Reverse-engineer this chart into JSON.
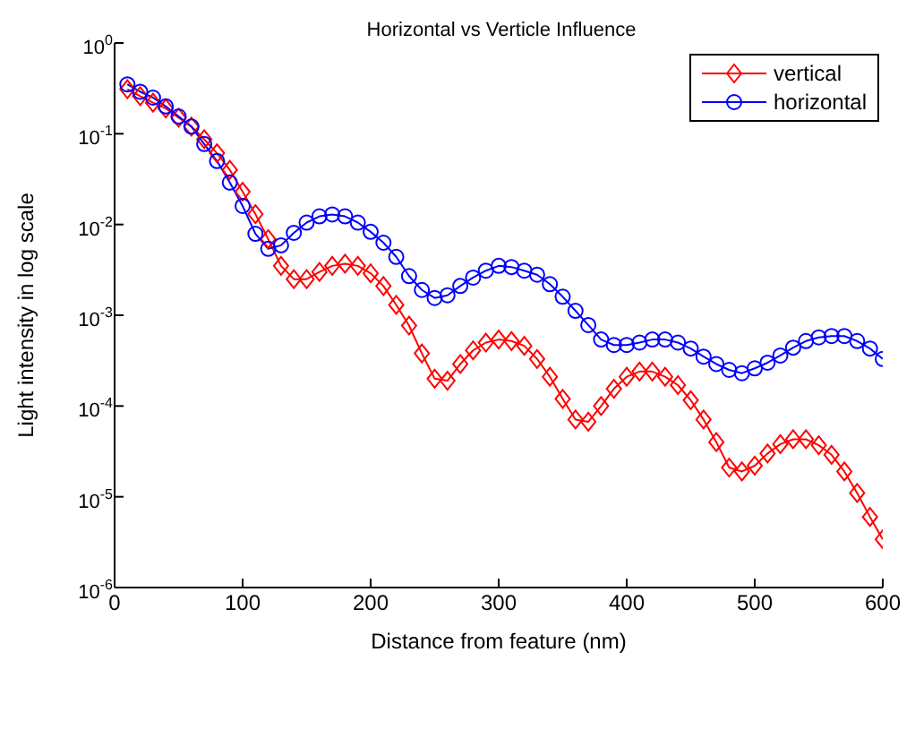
{
  "chart_data": {
    "type": "line",
    "title": "Horizontal vs Verticle Influence",
    "xlabel": "Distance from feature (nm)",
    "ylabel": "Light intensity in log scale",
    "x": [
      10,
      20,
      30,
      40,
      50,
      60,
      70,
      80,
      90,
      100,
      110,
      120,
      130,
      140,
      150,
      160,
      170,
      180,
      190,
      200,
      210,
      220,
      230,
      240,
      250,
      260,
      270,
      280,
      290,
      300,
      310,
      320,
      330,
      340,
      350,
      360,
      370,
      380,
      390,
      400,
      410,
      420,
      430,
      440,
      450,
      460,
      470,
      480,
      490,
      500,
      510,
      520,
      530,
      540,
      550,
      560,
      570,
      580,
      590,
      600
    ],
    "series": [
      {
        "name": "vertical",
        "color": "#ff0000",
        "marker": "diamond",
        "values": [
          0.31,
          0.26,
          0.22,
          0.19,
          0.15,
          0.12,
          0.087,
          0.061,
          0.04,
          0.023,
          0.013,
          0.0069,
          0.0035,
          0.0025,
          0.0025,
          0.003,
          0.0035,
          0.0037,
          0.0035,
          0.0029,
          0.0021,
          0.0013,
          0.00077,
          0.00038,
          0.0002,
          0.00019,
          0.00029,
          0.00041,
          0.0005,
          0.00054,
          0.00052,
          0.00046,
          0.00033,
          0.00021,
          0.00012,
          7.1e-05,
          6.7e-05,
          0.0001,
          0.000155,
          0.00021,
          0.00024,
          0.00024,
          0.00021,
          0.00017,
          0.000116,
          7.1e-05,
          4e-05,
          2.1e-05,
          1.9e-05,
          2.2e-05,
          3e-05,
          3.8e-05,
          4.3e-05,
          4.3e-05,
          3.7e-05,
          2.9e-05,
          1.9e-05,
          1.1e-05,
          6e-06,
          3.4e-06
        ]
      },
      {
        "name": "horizontal",
        "color": "#0000ff",
        "marker": "circle",
        "values": [
          0.35,
          0.29,
          0.25,
          0.2,
          0.155,
          0.12,
          0.077,
          0.05,
          0.029,
          0.016,
          0.0079,
          0.0054,
          0.0059,
          0.0081,
          0.0105,
          0.0123,
          0.0129,
          0.0123,
          0.0105,
          0.0083,
          0.0063,
          0.0044,
          0.0027,
          0.0019,
          0.00155,
          0.00166,
          0.0021,
          0.0026,
          0.0031,
          0.0035,
          0.0034,
          0.0031,
          0.0028,
          0.0022,
          0.0016,
          0.00112,
          0.00078,
          0.00054,
          0.00047,
          0.00047,
          0.0005,
          0.00054,
          0.00054,
          0.0005,
          0.00043,
          0.00035,
          0.00029,
          0.00025,
          0.00023,
          0.00026,
          0.0003,
          0.00036,
          0.00044,
          0.00052,
          0.00057,
          0.00059,
          0.00059,
          0.00052,
          0.00043,
          0.00033
        ]
      }
    ],
    "xlim": [
      0,
      600
    ],
    "xticks": [
      0,
      100,
      200,
      300,
      400,
      500,
      600
    ],
    "ylim": [
      1e-06,
      1
    ],
    "log": true,
    "yticks": [
      {
        "value": 1e-06,
        "label": "10$^{-6}$"
      },
      {
        "value": 1e-05,
        "label": "10$^{-5}$"
      },
      {
        "value": 0.0001,
        "label": "10$^{-4}$"
      },
      {
        "value": 0.001,
        "label": "10$^{-3}$"
      },
      {
        "value": 0.01,
        "label": "10$^{-2}$"
      },
      {
        "value": 0.1,
        "label": "10$^{-1}$"
      },
      {
        "value": 1,
        "label": "10$^{0}$"
      }
    ],
    "grid": false,
    "legend": "top right",
    "line_style": "solid"
  }
}
